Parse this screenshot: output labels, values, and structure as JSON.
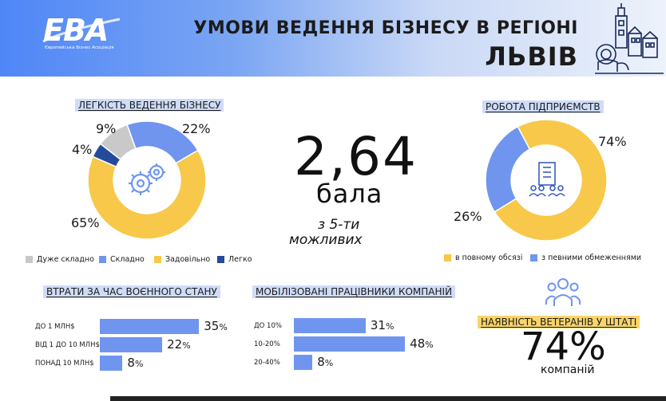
{
  "header": {
    "logo": "EBA",
    "logo_subtitle": "Європейська Бізнес Асоціація",
    "title": "УМОВИ ВЕДЕННЯ БІЗНЕСУ В РЕГІОНІ",
    "city": "ЛЬВІВ"
  },
  "ease": {
    "title": "ЛЕГКІСТЬ ВЕДЕННЯ БІЗНЕСУ",
    "slices": [
      {
        "label": "Дуже складно",
        "value": 9,
        "text": "9%",
        "color": "#c9c9c9"
      },
      {
        "label": "Складно",
        "value": 22,
        "text": "22%",
        "color": "#6f95ee"
      },
      {
        "label": "Задовільно",
        "value": 65,
        "text": "65%",
        "color": "#f8c84a"
      },
      {
        "label": "Легко",
        "value": 4,
        "text": "4%",
        "color": "#244a9c"
      }
    ]
  },
  "score": {
    "value": "2,64",
    "unit": "бала",
    "note_line1": "з 5-ти",
    "note_line2": "можливих"
  },
  "operation": {
    "title": "РОБОТА ПІДПРИЄМСТВ",
    "slices": [
      {
        "label": "в повному обсязі",
        "value": 74,
        "text": "74%",
        "color": "#f8c84a"
      },
      {
        "label": "з певними обмеженнями",
        "value": 26,
        "text": "26%",
        "color": "#6f95ee"
      }
    ]
  },
  "losses": {
    "title": "ВТРАТИ ЗА ЧАС ВОЄННОГО СТАНУ",
    "bars": [
      {
        "label": "ДО 1 МЛН$",
        "value": 35
      },
      {
        "label": "ВІД 1 ДО 10 МЛН$",
        "value": 22
      },
      {
        "label": "ПОНАД 10 МЛН$",
        "value": 8
      }
    ]
  },
  "mobilized": {
    "title": "МОБІЛІЗОВАНІ ПРАЦІВНИКИ КОМПАНІЙ",
    "bars": [
      {
        "label": "ДО 10%",
        "value": 31
      },
      {
        "label": "10-20%",
        "value": 48
      },
      {
        "label": "20-40%",
        "value": 8
      }
    ]
  },
  "veterans": {
    "title": "НАЯВНІСТЬ ВЕТЕРАНІВ У ШТАТІ",
    "value": "74%",
    "subtitle": "компаній"
  },
  "chart_data": [
    {
      "type": "pie",
      "title": "ЛЕГКІСТЬ ВЕДЕННЯ БІЗНЕСУ",
      "categories": [
        "Дуже складно",
        "Складно",
        "Задовільно",
        "Легко"
      ],
      "values": [
        9,
        22,
        65,
        4
      ]
    },
    {
      "type": "pie",
      "title": "РОБОТА ПІДПРИЄМСТВ",
      "categories": [
        "в повному обсязі",
        "з певними обмеженнями"
      ],
      "values": [
        74,
        26
      ]
    },
    {
      "type": "bar",
      "title": "ВТРАТИ ЗА ЧАС ВОЄННОГО СТАНУ",
      "categories": [
        "ДО 1 МЛН$",
        "ВІД 1 ДО 10 МЛН$",
        "ПОНАД 10 МЛН$"
      ],
      "values": [
        35,
        22,
        8
      ]
    },
    {
      "type": "bar",
      "title": "МОБІЛІЗОВАНІ ПРАЦІВНИКИ КОМПАНІЙ",
      "categories": [
        "ДО 10%",
        "10-20%",
        "20-40%"
      ],
      "values": [
        31,
        48,
        8
      ]
    }
  ]
}
